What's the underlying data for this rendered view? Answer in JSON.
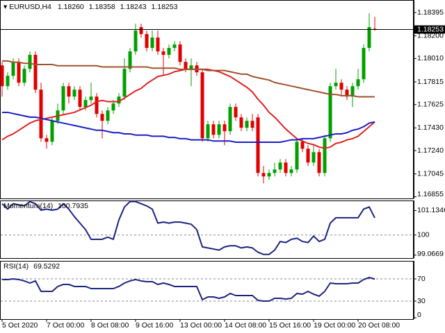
{
  "chart_data": [
    {
      "type": "candlestick",
      "title": "EURUSD,H4",
      "last_bar_labels": [
        "1.18260",
        "1.18358",
        "1.18243",
        "1.18253"
      ],
      "current_price": {
        "value": 1.18253,
        "label": "1.18253"
      },
      "categories": [
        "5 Oct 2020",
        null,
        null,
        null,
        null,
        null,
        null,
        null,
        "7 Oct 00:00",
        null,
        null,
        null,
        null,
        null,
        null,
        null,
        "8 Oct 08:00",
        null,
        null,
        null,
        null,
        null,
        null,
        null,
        "9 Oct 16:00",
        null,
        null,
        null,
        null,
        null,
        null,
        null,
        "13 Oct 00:00",
        null,
        null,
        null,
        null,
        null,
        null,
        null,
        "14 Oct 08:00",
        null,
        null,
        null,
        null,
        null,
        null,
        null,
        "15 Oct 16:00",
        null,
        null,
        null,
        null,
        null,
        null,
        null,
        "19 Oct 00:00",
        null,
        null,
        null,
        null,
        null,
        null,
        null,
        "20 Oct 08:00",
        null,
        null,
        null
      ],
      "open": [
        1.17953,
        1.17779,
        1.17866,
        1.17982,
        1.17808,
        1.17924,
        1.18041,
        1.1775,
        1.17343,
        1.17314,
        1.17489,
        1.17576,
        1.17779,
        1.17692,
        1.1775,
        1.17605,
        1.17663,
        1.17692,
        1.17547,
        1.17489,
        1.17576,
        1.17634,
        1.17692,
        1.17924,
        1.1807,
        1.18273,
        1.18215,
        1.18099,
        1.18186,
        1.1807,
        1.18041,
        1.18099,
        1.18128,
        1.17982,
        1.17924,
        1.17953,
        1.17895,
        1.17343,
        1.1746,
        1.17372,
        1.1746,
        1.17402,
        1.17605,
        1.17518,
        1.17431,
        1.17489,
        1.17518,
        1.17053,
        1.17024,
        1.17053,
        1.17082,
        1.1714,
        1.17053,
        1.17082,
        1.17314,
        1.17256,
        1.1714,
        1.17227,
        1.17053,
        1.17343,
        1.17779,
        1.17808,
        1.1775,
        1.17692,
        1.17779,
        1.17837,
        1.18099,
        1.1826
      ],
      "high": [
        1.17982,
        1.17895,
        1.18012,
        1.18012,
        1.17953,
        1.1807,
        1.1807,
        1.17808,
        1.17372,
        1.17518,
        1.17634,
        1.17808,
        1.17808,
        1.17779,
        1.17779,
        1.17692,
        1.17808,
        1.17721,
        1.17576,
        1.17605,
        1.17663,
        1.17721,
        1.18012,
        1.18099,
        1.18302,
        1.18302,
        1.18244,
        1.18244,
        1.18244,
        1.18099,
        1.18128,
        1.18157,
        1.18157,
        1.18012,
        1.18012,
        1.17982,
        1.17924,
        1.17489,
        1.17489,
        1.17489,
        1.17489,
        1.17634,
        1.17634,
        1.17547,
        1.17518,
        1.17547,
        1.17547,
        1.17111,
        1.17082,
        1.1714,
        1.17169,
        1.17169,
        1.17111,
        1.17343,
        1.17343,
        1.17285,
        1.17285,
        1.17256,
        1.17372,
        1.17808,
        1.17924,
        1.17837,
        1.17779,
        1.17808,
        1.17924,
        1.18128,
        1.1839,
        1.18358
      ],
      "low": [
        1.17692,
        1.1775,
        1.17837,
        1.17779,
        1.17779,
        1.17895,
        1.17721,
        1.17314,
        1.17256,
        1.17285,
        1.1746,
        1.17547,
        1.17634,
        1.17663,
        1.17576,
        1.17576,
        1.17634,
        1.17518,
        1.17343,
        1.1746,
        1.17547,
        1.17605,
        1.17663,
        1.17895,
        1.18041,
        1.18186,
        1.1807,
        1.1807,
        1.18041,
        1.17866,
        1.18012,
        1.1807,
        1.17953,
        1.17895,
        1.17779,
        1.17866,
        1.17314,
        1.17314,
        1.17343,
        1.17343,
        1.17285,
        1.17372,
        1.17489,
        1.17402,
        1.17402,
        1.17402,
        1.17024,
        1.16966,
        1.16995,
        1.17024,
        1.17053,
        1.17024,
        1.17024,
        1.17053,
        1.17227,
        1.17111,
        1.17111,
        1.17024,
        1.17024,
        1.17314,
        1.1775,
        1.17692,
        1.17663,
        1.17605,
        1.1775,
        1.17808,
        1.1807,
        1.18243
      ],
      "close": [
        1.17779,
        1.17866,
        1.17982,
        1.17808,
        1.17924,
        1.18041,
        1.1775,
        1.17343,
        1.17314,
        1.17489,
        1.17576,
        1.17779,
        1.17692,
        1.1775,
        1.17605,
        1.17663,
        1.17692,
        1.17547,
        1.17489,
        1.17576,
        1.17634,
        1.17692,
        1.17924,
        1.1807,
        1.18244,
        1.18215,
        1.18099,
        1.18186,
        1.1807,
        1.18041,
        1.18099,
        1.18128,
        1.17982,
        1.17924,
        1.17953,
        1.17895,
        1.17343,
        1.1746,
        1.17372,
        1.1746,
        1.17402,
        1.17605,
        1.17518,
        1.17431,
        1.17489,
        1.17431,
        1.17053,
        1.17024,
        1.17053,
        1.17082,
        1.1714,
        1.17053,
        1.17082,
        1.17314,
        1.17256,
        1.1714,
        1.17227,
        1.17053,
        1.17343,
        1.17779,
        1.17808,
        1.1775,
        1.17692,
        1.17779,
        1.17837,
        1.18099,
        1.18273,
        1.18253
      ],
      "up_color": "#00a000",
      "down_color": "#e00000",
      "series": [
        {
          "color": "#e02020",
          "values": [
            1.1733,
            1.1736,
            1.1738,
            1.1741,
            1.1744,
            1.1747,
            1.1749,
            1.175,
            1.1751,
            1.1752,
            1.1753,
            1.1754,
            1.1755,
            1.1756,
            1.1758,
            1.176,
            1.1762,
            1.1765,
            1.1766,
            1.1765,
            1.1765,
            1.1765,
            1.1768,
            1.1771,
            1.1774,
            1.1776,
            1.178,
            1.1783,
            1.1786,
            1.1787,
            1.1788,
            1.179,
            1.1791,
            1.1792,
            1.1792,
            1.1792,
            1.1792,
            1.1792,
            1.1791,
            1.179,
            1.1788,
            1.1786,
            1.1783,
            1.178,
            1.1777,
            1.1773,
            1.1767,
            1.1762,
            1.1756,
            1.1752,
            1.1747,
            1.1742,
            1.1738,
            1.1734,
            1.1732,
            1.173,
            1.1729,
            1.1727,
            1.1726,
            1.1727,
            1.173,
            1.1731,
            1.1733,
            1.1734,
            1.1736,
            1.174,
            1.1744,
            1.1748
          ]
        },
        {
          "color": "#1c1cc8",
          "values": [
            1.1756,
            1.1756,
            1.1755,
            1.1754,
            1.1753,
            1.1752,
            1.1752,
            1.1751,
            1.175,
            1.1749,
            1.1748,
            1.1747,
            1.1746,
            1.1745,
            1.1744,
            1.1743,
            1.1742,
            1.1741,
            1.1741,
            1.174,
            1.1739,
            1.1739,
            1.1738,
            1.1738,
            1.1737,
            1.1737,
            1.1737,
            1.1736,
            1.1736,
            1.1736,
            1.1735,
            1.1735,
            1.1734,
            1.1734,
            1.1733,
            1.1733,
            1.1733,
            1.1733,
            1.1732,
            1.1732,
            1.1732,
            1.1732,
            1.1731,
            1.1731,
            1.1731,
            1.1731,
            1.1731,
            1.1731,
            1.1731,
            1.1731,
            1.1731,
            1.1732,
            1.1733,
            1.1733,
            1.1734,
            1.1734,
            1.1734,
            1.1735,
            1.1736,
            1.1737,
            1.1738,
            1.1738,
            1.1739,
            1.1741,
            1.1742,
            1.1744,
            1.1747,
            1.1748
          ]
        },
        {
          "color": "#a0522d",
          "values": [
            1.1799,
            1.1799,
            1.1798,
            1.1798,
            1.1797,
            1.1797,
            1.1796,
            1.1796,
            1.1796,
            1.1796,
            1.1795,
            1.1795,
            1.1795,
            1.1795,
            1.1795,
            1.1795,
            1.1795,
            1.1795,
            1.1794,
            1.1794,
            1.1794,
            1.1794,
            1.1794,
            1.1794,
            1.1794,
            1.1794,
            1.1794,
            1.1793,
            1.1793,
            1.1793,
            1.1793,
            1.1793,
            1.1792,
            1.1792,
            1.1792,
            1.1792,
            1.1792,
            1.1791,
            1.1791,
            1.1791,
            1.1791,
            1.179,
            1.1789,
            1.1788,
            1.1788,
            1.1786,
            1.1785,
            1.1784,
            1.1783,
            1.1781,
            1.178,
            1.1779,
            1.1778,
            1.1777,
            1.1776,
            1.1775,
            1.1774,
            1.1773,
            1.1772,
            1.1771,
            1.1771,
            1.177,
            1.177,
            1.177,
            1.1769,
            1.1769,
            1.1769,
            1.1769
          ]
        }
      ],
      "ylim": [
        1.1684,
        1.185
      ],
      "yticks": [
        1.18395,
        {
          "value": 1.182,
          "label": "1.18200"
        },
        {
          "value": 1.1801,
          "label": "1.18010"
        },
        1.17815,
        1.17625,
        {
          "value": 1.1743,
          "label": "1.17430"
        },
        {
          "value": 1.1724,
          "label": "1.17240"
        },
        1.17045,
        1.16855
      ]
    },
    {
      "type": "line",
      "title": "Momentum(14)",
      "series": [
        {
          "color": "#1a237e",
          "values": [
            101.45,
            101.2,
            101.45,
            101.4,
            101.35,
            101.55,
            101.45,
            101.15,
            101.2,
            101.15,
            101.2,
            101.45,
            101.2,
            100.85,
            100.55,
            100.25,
            99.8,
            99.8,
            99.8,
            99.9,
            99.8,
            100.7,
            101.3,
            101.55,
            101.55,
            101.45,
            101.35,
            101.2,
            100.55,
            100.6,
            100.55,
            100.6,
            100.6,
            100.55,
            100.5,
            100.25,
            99.45,
            99.4,
            99.35,
            99.3,
            99.45,
            99.5,
            99.5,
            99.4,
            99.45,
            99.4,
            99.2,
            99.1,
            99.1,
            99.3,
            99.7,
            99.65,
            99.8,
            99.85,
            99.7,
            99.65,
            99.95,
            99.7,
            99.8,
            100.55,
            100.8,
            100.8,
            100.8,
            100.8,
            100.8,
            101.2,
            101.3,
            100.7935
          ]
        }
      ],
      "ylim": [
        98.93,
        101.6
      ],
      "yticks": [
        101.1346,
        100,
        99.0669
      ],
      "levels": [
        100
      ]
    },
    {
      "type": "line",
      "title": "RSI(14)",
      "series": [
        {
          "color": "#1a237e",
          "values": [
            68.8,
            68.8,
            70,
            68.8,
            66.3,
            62.5,
            66.3,
            47.5,
            47.5,
            47.5,
            56.3,
            60,
            60,
            56.3,
            56.3,
            56.3,
            52.5,
            52.5,
            52.5,
            52.5,
            52.5,
            56.3,
            62.5,
            66.3,
            68.8,
            66.3,
            65,
            65,
            60,
            62.5,
            60,
            56.3,
            56.3,
            56.3,
            56.3,
            56.3,
            32.5,
            37.5,
            37.5,
            35,
            37.5,
            43.8,
            40,
            40,
            40,
            40,
            31.3,
            30,
            30,
            35,
            35,
            33.8,
            35,
            43.8,
            42.5,
            47.5,
            42.5,
            38.8,
            47.5,
            62.5,
            61.3,
            61.3,
            61.3,
            62.5,
            62.5,
            68.8,
            72.5,
            69.5292
          ]
        }
      ],
      "ylim": [
        -2.5,
        102.5
      ],
      "yticks": [
        70,
        30,
        0
      ],
      "levels": [
        70,
        30
      ]
    }
  ]
}
